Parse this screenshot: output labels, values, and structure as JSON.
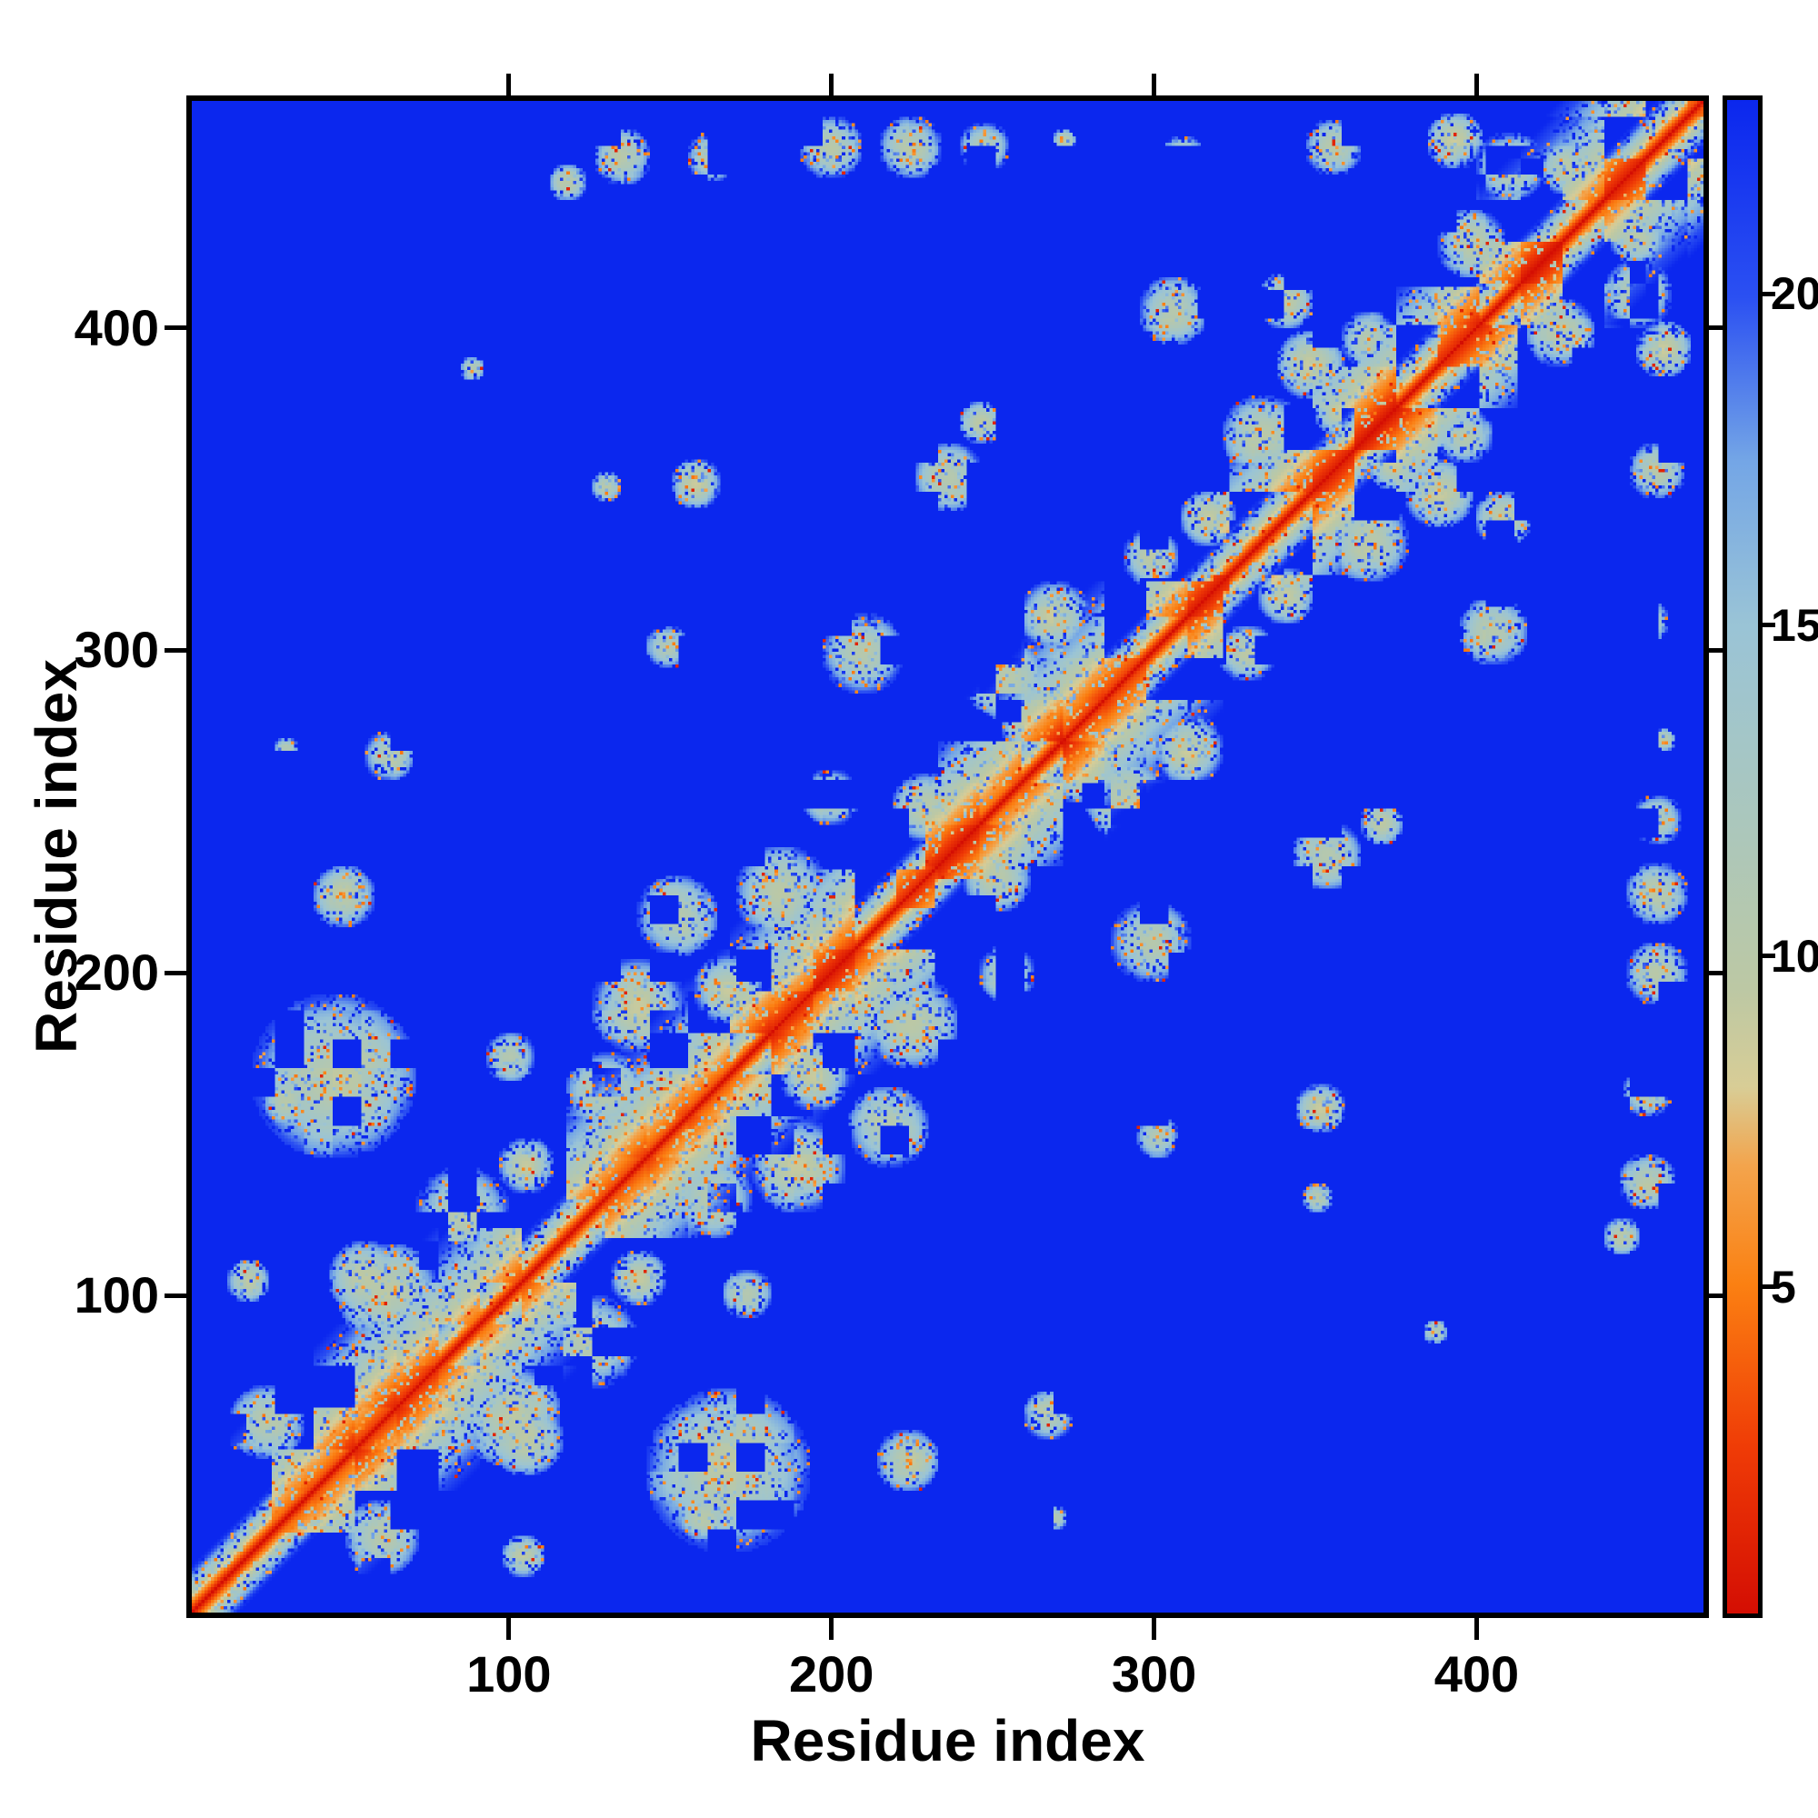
{
  "figure": {
    "background": "#ffffff"
  },
  "chart_data": {
    "type": "heatmap",
    "title": "",
    "xlabel": "Residue index",
    "ylabel": "Residue index",
    "x_range": [
      0,
      472
    ],
    "y_range": [
      0,
      472
    ],
    "x_ticks": [
      100,
      200,
      300,
      400
    ],
    "y_ticks": [
      100,
      200,
      300,
      400
    ],
    "n": 472,
    "value_cap": 23,
    "background_color": "#0b27ee",
    "diagonal_color": "#d40e03",
    "grid": false,
    "legend_position": "none",
    "colorbar": {
      "range": [
        0,
        23
      ],
      "ticks": [
        5,
        10,
        15,
        20
      ],
      "colormap_stops": [
        [
          0,
          "#d40e03"
        ],
        [
          2.5,
          "#ef3b06"
        ],
        [
          5,
          "#fb8012"
        ],
        [
          6.8,
          "#f3a44c"
        ],
        [
          8,
          "#d8cd96"
        ],
        [
          9.5,
          "#bcc8a4"
        ],
        [
          12,
          "#abc7bc"
        ],
        [
          15,
          "#9ac4d6"
        ],
        [
          17.5,
          "#74a6e6"
        ],
        [
          20,
          "#2b50f2"
        ],
        [
          23,
          "#0b27ee"
        ]
      ]
    },
    "diagonal_segments": [
      [
        2,
        120
      ],
      [
        118,
        232
      ],
      [
        230,
        322
      ],
      [
        320,
        414
      ],
      [
        402,
        472
      ]
    ],
    "contacts": [
      [
        24,
        60,
        12
      ],
      [
        18,
        104,
        7
      ],
      [
        30,
        160,
        8
      ],
      [
        45,
        168,
        26
      ],
      [
        62,
        100,
        16
      ],
      [
        85,
        125,
        15
      ],
      [
        55,
        105,
        12
      ],
      [
        97,
        115,
        8
      ],
      [
        48,
        224,
        10
      ],
      [
        62,
        268,
        8
      ],
      [
        30,
        270,
        4
      ],
      [
        100,
        174,
        8
      ],
      [
        130,
        163,
        13
      ],
      [
        105,
        140,
        9
      ],
      [
        140,
        190,
        15
      ],
      [
        152,
        218,
        13
      ],
      [
        168,
        195,
        11
      ],
      [
        150,
        165,
        11
      ],
      [
        185,
        225,
        15
      ],
      [
        200,
        255,
        9
      ],
      [
        210,
        300,
        13
      ],
      [
        149,
        302,
        7
      ],
      [
        158,
        353,
        8
      ],
      [
        130,
        352,
        5
      ],
      [
        230,
        252,
        11
      ],
      [
        243,
        262,
        9
      ],
      [
        255,
        292,
        13
      ],
      [
        262,
        278,
        9
      ],
      [
        270,
        312,
        11
      ],
      [
        237,
        355,
        11
      ],
      [
        247,
        372,
        7
      ],
      [
        300,
        330,
        9
      ],
      [
        307,
        407,
        11
      ],
      [
        318,
        342,
        9
      ],
      [
        335,
        368,
        13
      ],
      [
        350,
        390,
        11
      ],
      [
        342,
        410,
        9
      ],
      [
        360,
        376,
        9
      ],
      [
        368,
        398,
        9
      ],
      [
        400,
        428,
        11
      ],
      [
        412,
        452,
        11
      ],
      [
        395,
        460,
        9
      ],
      [
        430,
        452,
        9
      ],
      [
        118,
        447,
        6
      ],
      [
        135,
        455,
        9
      ],
      [
        163,
        455,
        8
      ],
      [
        200,
        458,
        10
      ],
      [
        225,
        458,
        10
      ],
      [
        248,
        458,
        8
      ],
      [
        273,
        460,
        4
      ],
      [
        310,
        455,
        7
      ],
      [
        357,
        458,
        9
      ],
      [
        88,
        389,
        4
      ]
    ]
  }
}
